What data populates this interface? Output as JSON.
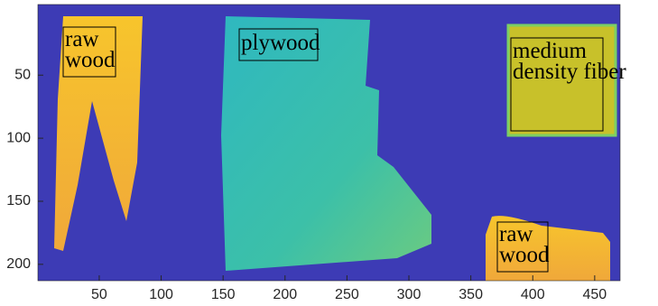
{
  "chart_data": {
    "type": "image",
    "xlim": [
      0.5,
      470.5
    ],
    "ylim": [
      -6,
      213
    ],
    "xticks": [
      50,
      100,
      150,
      200,
      250,
      300,
      350,
      400,
      450
    ],
    "yticks": [
      50,
      100,
      150,
      200
    ],
    "y_reversed": true,
    "annotations": [
      {
        "lines": [
          "raw",
          "wood"
        ]
      },
      {
        "lines": [
          "plywood"
        ]
      },
      {
        "lines": [
          "medium",
          "density fiber"
        ]
      },
      {
        "lines": [
          "raw",
          "wood"
        ]
      }
    ]
  }
}
